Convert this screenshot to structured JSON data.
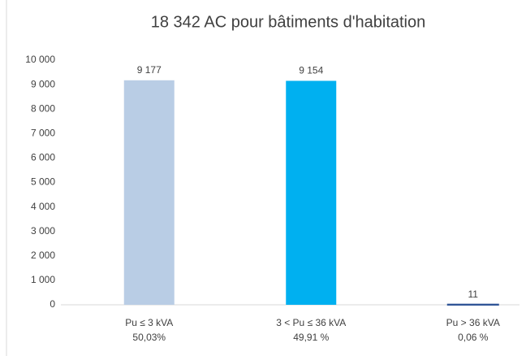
{
  "chart_data": {
    "type": "bar",
    "title": "18 342 AC pour bâtiments d'habitation",
    "categories": [
      "Pu ≤ 3 kVA",
      "3 < Pu ≤ 36 kVA",
      "Pu > 36 kVA"
    ],
    "category_notes": [
      "50,03%",
      "49,91 %",
      "0,06 %"
    ],
    "values": [
      9177,
      9154,
      11
    ],
    "value_labels": [
      "9 177",
      "9 154",
      "11"
    ],
    "colors": [
      "#b9cde5",
      "#00b0f0",
      "#558ed5"
    ],
    "ylim": [
      0,
      10000
    ],
    "yticks": [
      0,
      {
        "value": 1000,
        "label": "1 000"
      },
      {
        "value": 2000,
        "label": "2 000"
      },
      {
        "value": 3000,
        "label": "3 000"
      },
      {
        "value": 4000,
        "label": "4 000"
      },
      {
        "value": 5000,
        "label": "5 000"
      },
      {
        "value": 6000,
        "label": "6 000"
      },
      {
        "value": 7000,
        "label": "7 000"
      },
      {
        "value": 8000,
        "label": "8 000"
      },
      {
        "value": 9000,
        "label": "9 000"
      },
      {
        "value": 10000,
        "label": "10 000"
      }
    ],
    "grid": false
  }
}
